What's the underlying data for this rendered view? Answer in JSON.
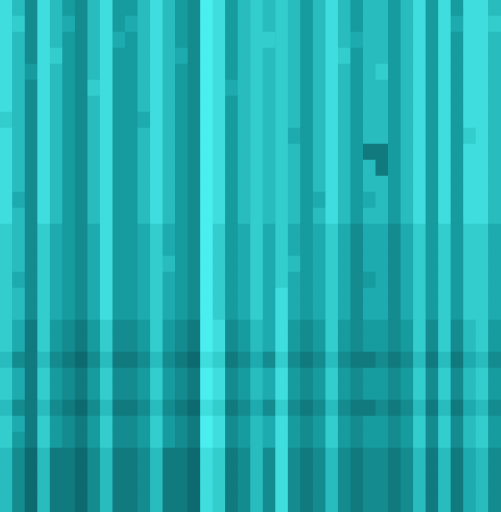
{
  "chart_data": {
    "type": "heatmap",
    "tick_labels": false,
    "color": [
      "#0a5a5e",
      "#17a3a7",
      "#4aeeee"
    ],
    "zlim": [
      0,
      9
    ],
    "cells": [
      [
        8,
        6,
        3,
        8,
        6,
        4,
        3,
        6,
        8,
        4,
        4,
        6,
        8,
        6,
        4,
        3,
        9,
        8,
        4,
        6,
        7,
        6,
        7,
        6,
        4,
        6,
        8,
        6,
        4,
        6,
        6,
        4,
        6,
        8,
        4,
        8,
        4,
        8,
        8,
        6
      ],
      [
        8,
        7,
        3,
        8,
        6,
        5,
        3,
        6,
        8,
        4,
        5,
        6,
        8,
        6,
        4,
        3,
        9,
        8,
        4,
        6,
        7,
        6,
        7,
        6,
        4,
        6,
        8,
        6,
        4,
        6,
        6,
        4,
        6,
        8,
        4,
        8,
        5,
        8,
        8,
        7
      ],
      [
        8,
        6,
        3,
        8,
        6,
        4,
        3,
        6,
        8,
        5,
        4,
        6,
        8,
        6,
        4,
        3,
        9,
        8,
        4,
        6,
        7,
        7,
        7,
        6,
        4,
        6,
        8,
        6,
        5,
        6,
        6,
        4,
        6,
        8,
        4,
        8,
        4,
        8,
        8,
        6
      ],
      [
        8,
        6,
        3,
        8,
        7,
        4,
        3,
        6,
        8,
        4,
        4,
        6,
        8,
        6,
        5,
        3,
        9,
        8,
        4,
        6,
        7,
        6,
        7,
        6,
        4,
        6,
        8,
        7,
        4,
        6,
        6,
        4,
        6,
        8,
        4,
        8,
        4,
        8,
        8,
        6
      ],
      [
        8,
        6,
        4,
        8,
        6,
        4,
        3,
        6,
        8,
        4,
        4,
        6,
        8,
        6,
        4,
        3,
        9,
        8,
        4,
        6,
        7,
        6,
        7,
        6,
        4,
        6,
        8,
        6,
        4,
        6,
        7,
        4,
        6,
        8,
        4,
        8,
        4,
        8,
        8,
        6
      ],
      [
        8,
        6,
        3,
        8,
        6,
        4,
        3,
        7,
        8,
        4,
        4,
        6,
        8,
        6,
        4,
        3,
        9,
        8,
        5,
        6,
        7,
        6,
        7,
        6,
        4,
        6,
        8,
        6,
        4,
        6,
        6,
        4,
        6,
        8,
        4,
        8,
        4,
        8,
        8,
        6
      ],
      [
        8,
        6,
        3,
        8,
        6,
        4,
        3,
        6,
        8,
        4,
        4,
        6,
        8,
        6,
        4,
        3,
        9,
        8,
        4,
        6,
        7,
        6,
        7,
        6,
        4,
        6,
        8,
        6,
        4,
        6,
        6,
        4,
        6,
        8,
        4,
        8,
        4,
        8,
        8,
        6
      ],
      [
        7,
        6,
        3,
        8,
        6,
        4,
        3,
        6,
        8,
        4,
        4,
        5,
        8,
        6,
        4,
        3,
        9,
        8,
        4,
        6,
        7,
        6,
        7,
        6,
        4,
        6,
        8,
        6,
        4,
        6,
        6,
        4,
        6,
        8,
        4,
        8,
        4,
        8,
        8,
        6
      ],
      [
        8,
        6,
        3,
        8,
        6,
        4,
        3,
        6,
        8,
        4,
        4,
        6,
        8,
        6,
        4,
        3,
        9,
        8,
        4,
        6,
        7,
        6,
        7,
        5,
        4,
        6,
        8,
        6,
        4,
        6,
        6,
        4,
        6,
        8,
        4,
        8,
        4,
        7,
        8,
        6
      ],
      [
        8,
        6,
        3,
        8,
        6,
        4,
        3,
        6,
        8,
        4,
        4,
        6,
        8,
        6,
        4,
        3,
        9,
        8,
        4,
        6,
        7,
        6,
        7,
        6,
        4,
        6,
        8,
        6,
        4,
        2,
        2,
        4,
        6,
        8,
        4,
        8,
        4,
        8,
        8,
        6
      ],
      [
        8,
        6,
        3,
        8,
        6,
        4,
        3,
        6,
        8,
        4,
        4,
        6,
        8,
        6,
        4,
        3,
        9,
        8,
        4,
        6,
        7,
        6,
        7,
        6,
        4,
        6,
        8,
        6,
        4,
        6,
        2,
        4,
        6,
        8,
        4,
        8,
        4,
        8,
        8,
        6
      ],
      [
        8,
        6,
        3,
        8,
        6,
        4,
        3,
        6,
        8,
        4,
        4,
        6,
        8,
        6,
        4,
        3,
        9,
        8,
        4,
        6,
        7,
        6,
        7,
        6,
        4,
        6,
        8,
        6,
        4,
        6,
        6,
        4,
        6,
        8,
        4,
        8,
        4,
        8,
        8,
        6
      ],
      [
        8,
        5,
        3,
        8,
        6,
        4,
        3,
        6,
        8,
        4,
        4,
        6,
        8,
        6,
        4,
        3,
        9,
        8,
        4,
        6,
        7,
        6,
        7,
        6,
        4,
        5,
        8,
        6,
        4,
        5,
        6,
        4,
        6,
        8,
        4,
        8,
        4,
        8,
        8,
        6
      ],
      [
        8,
        6,
        3,
        8,
        6,
        4,
        3,
        6,
        8,
        4,
        4,
        6,
        8,
        6,
        4,
        3,
        9,
        8,
        4,
        6,
        7,
        6,
        7,
        6,
        4,
        6,
        8,
        6,
        4,
        6,
        6,
        4,
        6,
        8,
        4,
        8,
        4,
        8,
        8,
        6
      ],
      [
        7,
        6,
        3,
        7,
        5,
        4,
        3,
        5,
        8,
        4,
        4,
        5,
        7,
        5,
        4,
        3,
        9,
        7,
        4,
        5,
        7,
        5,
        7,
        5,
        4,
        5,
        7,
        5,
        3,
        5,
        5,
        3,
        5,
        7,
        4,
        7,
        4,
        7,
        7,
        5
      ],
      [
        7,
        6,
        3,
        7,
        5,
        4,
        3,
        5,
        8,
        4,
        4,
        5,
        7,
        5,
        4,
        3,
        9,
        7,
        4,
        5,
        7,
        5,
        7,
        5,
        4,
        5,
        7,
        5,
        3,
        5,
        5,
        3,
        5,
        7,
        4,
        7,
        4,
        7,
        7,
        5
      ],
      [
        7,
        6,
        3,
        7,
        5,
        4,
        3,
        5,
        8,
        4,
        4,
        5,
        7,
        6,
        4,
        3,
        9,
        7,
        4,
        5,
        7,
        5,
        7,
        6,
        4,
        5,
        7,
        5,
        3,
        5,
        5,
        3,
        5,
        7,
        4,
        7,
        4,
        7,
        7,
        5
      ],
      [
        7,
        5,
        3,
        7,
        5,
        4,
        3,
        5,
        8,
        4,
        4,
        5,
        7,
        5,
        4,
        3,
        9,
        7,
        4,
        5,
        7,
        5,
        7,
        5,
        4,
        5,
        7,
        5,
        3,
        4,
        5,
        3,
        5,
        7,
        4,
        7,
        4,
        7,
        7,
        5
      ],
      [
        7,
        6,
        3,
        7,
        5,
        4,
        3,
        5,
        8,
        4,
        4,
        5,
        7,
        5,
        4,
        3,
        9,
        7,
        4,
        5,
        7,
        5,
        8,
        5,
        4,
        5,
        7,
        5,
        3,
        5,
        5,
        3,
        5,
        7,
        4,
        7,
        4,
        7,
        7,
        5
      ],
      [
        7,
        6,
        3,
        7,
        5,
        4,
        3,
        5,
        8,
        4,
        4,
        5,
        7,
        5,
        4,
        3,
        9,
        7,
        4,
        5,
        7,
        5,
        8,
        5,
        4,
        5,
        7,
        5,
        3,
        5,
        5,
        3,
        5,
        7,
        4,
        7,
        4,
        7,
        7,
        5
      ],
      [
        7,
        5,
        2,
        7,
        4,
        3,
        2,
        4,
        7,
        3,
        3,
        4,
        7,
        4,
        3,
        2,
        9,
        8,
        3,
        4,
        6,
        5,
        8,
        4,
        3,
        4,
        7,
        4,
        3,
        4,
        4,
        3,
        4,
        7,
        3,
        7,
        3,
        6,
        7,
        4
      ],
      [
        7,
        5,
        2,
        7,
        4,
        3,
        2,
        4,
        7,
        3,
        3,
        4,
        7,
        4,
        3,
        2,
        9,
        8,
        3,
        4,
        6,
        5,
        8,
        4,
        3,
        4,
        7,
        4,
        3,
        4,
        4,
        3,
        4,
        7,
        3,
        7,
        3,
        6,
        7,
        4
      ],
      [
        6,
        3,
        2,
        6,
        3,
        2,
        1,
        3,
        6,
        2,
        2,
        3,
        6,
        3,
        2,
        1,
        8,
        7,
        2,
        3,
        5,
        3,
        7,
        3,
        2,
        3,
        6,
        3,
        2,
        2,
        3,
        2,
        3,
        6,
        2,
        6,
        2,
        5,
        6,
        3
      ],
      [
        7,
        5,
        2,
        7,
        4,
        3,
        2,
        4,
        7,
        3,
        3,
        4,
        7,
        4,
        3,
        2,
        9,
        8,
        3,
        4,
        6,
        5,
        8,
        4,
        3,
        4,
        7,
        4,
        3,
        4,
        4,
        3,
        4,
        7,
        3,
        7,
        3,
        6,
        7,
        4
      ],
      [
        7,
        5,
        2,
        7,
        4,
        3,
        2,
        4,
        7,
        3,
        3,
        4,
        7,
        4,
        3,
        2,
        9,
        8,
        3,
        4,
        6,
        5,
        8,
        4,
        3,
        4,
        7,
        4,
        3,
        4,
        4,
        3,
        4,
        7,
        3,
        7,
        3,
        6,
        7,
        4
      ],
      [
        6,
        3,
        2,
        6,
        3,
        2,
        1,
        3,
        6,
        2,
        2,
        3,
        6,
        3,
        2,
        1,
        8,
        7,
        2,
        3,
        5,
        3,
        7,
        3,
        2,
        3,
        6,
        3,
        2,
        2,
        3,
        2,
        3,
        6,
        2,
        6,
        2,
        5,
        6,
        3
      ],
      [
        7,
        5,
        2,
        7,
        4,
        3,
        2,
        4,
        7,
        3,
        3,
        4,
        7,
        4,
        3,
        2,
        9,
        8,
        3,
        4,
        6,
        5,
        8,
        4,
        3,
        4,
        7,
        4,
        3,
        4,
        4,
        3,
        4,
        7,
        3,
        7,
        3,
        6,
        7,
        4
      ],
      [
        7,
        4,
        2,
        7,
        4,
        3,
        2,
        4,
        7,
        3,
        3,
        4,
        7,
        4,
        3,
        2,
        9,
        8,
        3,
        4,
        6,
        5,
        8,
        4,
        3,
        4,
        7,
        4,
        3,
        4,
        4,
        3,
        4,
        7,
        3,
        7,
        3,
        6,
        7,
        4
      ],
      [
        6,
        3,
        1,
        6,
        2,
        2,
        1,
        3,
        6,
        2,
        2,
        3,
        6,
        2,
        2,
        1,
        8,
        7,
        2,
        3,
        6,
        3,
        8,
        3,
        2,
        3,
        6,
        3,
        2,
        3,
        3,
        2,
        3,
        6,
        2,
        6,
        2,
        5,
        6,
        3
      ],
      [
        6,
        3,
        1,
        6,
        2,
        2,
        1,
        3,
        6,
        2,
        2,
        3,
        6,
        2,
        2,
        1,
        8,
        7,
        2,
        3,
        6,
        3,
        8,
        3,
        2,
        3,
        6,
        3,
        2,
        3,
        3,
        2,
        3,
        6,
        2,
        6,
        2,
        5,
        6,
        3
      ],
      [
        6,
        3,
        1,
        6,
        2,
        2,
        1,
        3,
        6,
        2,
        2,
        3,
        6,
        2,
        2,
        1,
        8,
        7,
        2,
        3,
        6,
        3,
        8,
        3,
        2,
        3,
        6,
        3,
        2,
        3,
        3,
        2,
        3,
        6,
        2,
        6,
        2,
        5,
        6,
        3
      ],
      [
        6,
        3,
        1,
        6,
        2,
        2,
        1,
        3,
        6,
        2,
        2,
        3,
        6,
        2,
        2,
        1,
        8,
        7,
        2,
        3,
        6,
        3,
        8,
        3,
        2,
        3,
        6,
        3,
        2,
        3,
        3,
        2,
        3,
        6,
        2,
        6,
        2,
        5,
        6,
        3
      ]
    ]
  }
}
